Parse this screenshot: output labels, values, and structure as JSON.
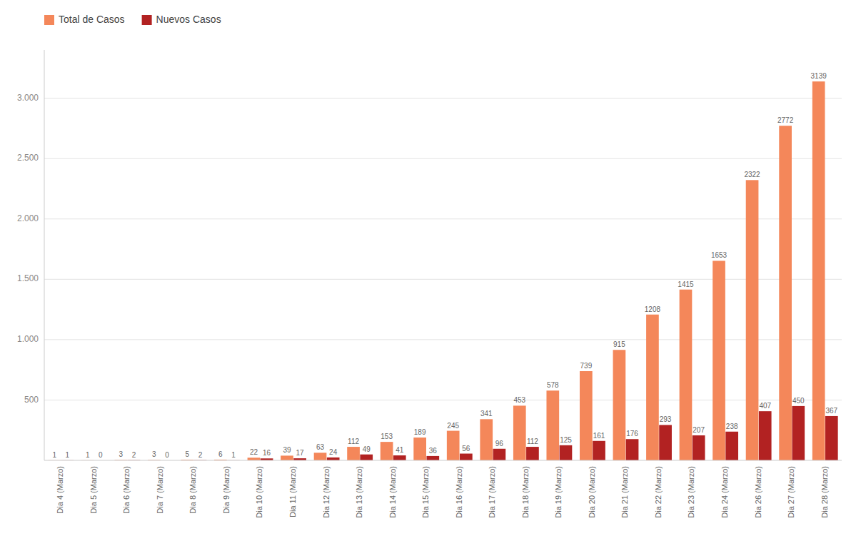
{
  "chart_data": {
    "type": "bar",
    "categories": [
      "Dia 4 (Marzo)",
      "Dia 5 (Marzo)",
      "Dia 6 (Marzo)",
      "Dia 7 (Marzo)",
      "Dia 8 (Marzo)",
      "Dia 9 (Marzo)",
      "Dia 10 (Marzo)",
      "Dia 11 (Marzo)",
      "Dia 12 (Marzo)",
      "Dia 13 (Marzo)",
      "Dia 14 (Marzo)",
      "Dia 15 (Marzo)",
      "Dia 16 (Marzo)",
      "Dia 17 (Marzo)",
      "Dia 18 (Marzo)",
      "Dia 19 (Marzo)",
      "Dia 20 (Marzo)",
      "Dia 21 (Marzo)",
      "Dia 22 (Marzo)",
      "Dia 23 (Marzo)",
      "Dia 24 (Marzo)",
      "Dia 26 (Marzo)",
      "Dia 27 (Marzo)",
      "Dia 28 (Marzo)"
    ],
    "series": [
      {
        "name": "Total de Casos",
        "color": "#F4875A",
        "values": [
          1,
          1,
          3,
          3,
          5,
          6,
          22,
          39,
          63,
          112,
          153,
          189,
          245,
          341,
          453,
          578,
          739,
          915,
          1208,
          1415,
          1653,
          2322,
          2772,
          3139
        ]
      },
      {
        "name": "Nuevos Casos",
        "color": "#B22222",
        "values": [
          1,
          0,
          2,
          0,
          2,
          1,
          16,
          17,
          24,
          49,
          41,
          36,
          56,
          96,
          112,
          125,
          161,
          176,
          293,
          207,
          238,
          407,
          450,
          367
        ]
      }
    ],
    "ylim": [
      0,
      3400
    ],
    "yticks": [
      500,
      {
        "value": 1000,
        "label": "1.000"
      },
      {
        "value": 1500,
        "label": "1.500"
      },
      {
        "value": 2000,
        "label": "2.000"
      },
      {
        "value": 2500,
        "label": "2.500"
      },
      {
        "value": 3000,
        "label": "3.000"
      }
    ],
    "grid": true,
    "legend": "top-left",
    "data_labels": true
  }
}
